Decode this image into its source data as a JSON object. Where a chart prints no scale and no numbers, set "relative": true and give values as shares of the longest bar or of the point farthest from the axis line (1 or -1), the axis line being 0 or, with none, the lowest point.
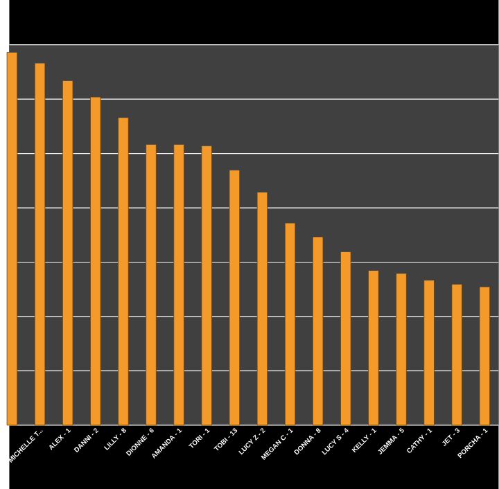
{
  "chart_data": {
    "type": "bar",
    "relative": true,
    "grid": "y",
    "color": "#f39a2b",
    "categories": [
      null,
      "MICHELLE T...",
      "ALEX - 1",
      "DANNI - 2",
      "LILLY - 8",
      "DIONNE - 6",
      "AMANDA - 1",
      "TORI - 1",
      "TOBI - 13",
      "LUCY Z - 2",
      "MEGAN C - 1",
      "DONNA - 8",
      "LUCY S - 4",
      "KELLY - 1",
      "JEMMA - 5",
      "CATHY - 1",
      "JET - 3",
      "PORCHA - 1"
    ],
    "values": [
      1,
      0.971,
      0.924,
      0.88,
      0.825,
      0.753,
      0.753,
      0.749,
      0.684,
      0.625,
      0.542,
      0.505,
      0.465,
      0.415,
      0.407,
      0.389,
      0.378,
      0.371
    ]
  }
}
